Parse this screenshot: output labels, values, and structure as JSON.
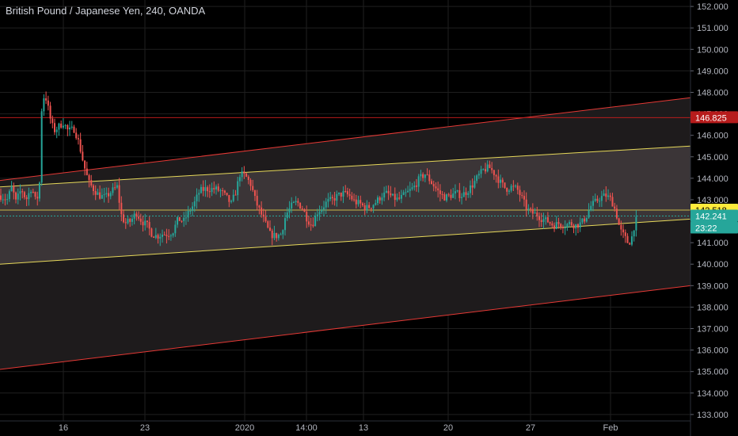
{
  "chart_data": {
    "type": "candlestick",
    "title": "British Pound / Japanese Yen, 240, OANDA",
    "ylim": [
      132.7,
      152.3
    ],
    "y_ticks": [
      133,
      134,
      135,
      136,
      137,
      138,
      139,
      140,
      141,
      142,
      143,
      144,
      145,
      146,
      147,
      148,
      149,
      150,
      151,
      152
    ],
    "y_tick_labels": [
      "133.000",
      "134.000",
      "135.000",
      "136.000",
      "137.000",
      "138.000",
      "139.000",
      "140.000",
      "141.000",
      "142.000",
      "143.000",
      "144.000",
      "145.000",
      "146.000",
      "147.000",
      "148.000",
      "149.000",
      "150.000",
      "151.000",
      "152.000"
    ],
    "x_tick_labels": [
      "16",
      "23",
      "2020",
      "14:00",
      "13",
      "20",
      "27",
      "Feb"
    ],
    "grid": true,
    "colors": {
      "up": "#26a69a",
      "down": "#ef5350",
      "outer_channel": "#e53935",
      "inner_channel": "#e6d85a",
      "channel_fill": "#3b3537",
      "grid": "#1f1f1f",
      "axis_text": "#b2b5be",
      "background": "#000000"
    },
    "price_labels": [
      {
        "value": "146.825",
        "color": "#b71c1c",
        "text_color": "#ffffff"
      },
      {
        "value": "142.518",
        "color": "#ffeb3b",
        "text_color": "#000000"
      },
      {
        "value": "142.241",
        "color": "#26a69a",
        "text_color": "#ffffff"
      },
      {
        "value": "23:22",
        "color": "#26a69a",
        "text_color": "#ffffff"
      }
    ],
    "horizontal_levels": [
      {
        "value": 146.825,
        "color": "#b71c1c"
      },
      {
        "value": 142.518,
        "color": "#c9b94a"
      },
      {
        "value": 142.241,
        "color": "#26a69a"
      }
    ],
    "channels": {
      "outer_upper": {
        "from": 143.9,
        "to": 147.75
      },
      "outer_lower": {
        "from": 135.1,
        "to": 139.0
      },
      "inner_upper": {
        "from": 143.6,
        "to": 145.5
      },
      "inner_lower": {
        "from": 140.0,
        "to": 142.1
      }
    },
    "path": [
      [
        0,
        143.2
      ],
      [
        9,
        143.0
      ],
      [
        15,
        143.6
      ],
      [
        20,
        142.9
      ],
      [
        27,
        143.5
      ],
      [
        33,
        143.0
      ],
      [
        40,
        143.6
      ],
      [
        46,
        142.8
      ],
      [
        50,
        143.8
      ],
      [
        53,
        147.6
      ],
      [
        57,
        147.9
      ],
      [
        60,
        147.4
      ],
      [
        64,
        146.7
      ],
      [
        68,
        146.2
      ],
      [
        74,
        146.4
      ],
      [
        80,
        146.6
      ],
      [
        86,
        146.2
      ],
      [
        94,
        146.3
      ],
      [
        100,
        145.6
      ],
      [
        106,
        144.6
      ],
      [
        112,
        143.8
      ],
      [
        118,
        143.5
      ],
      [
        125,
        143.2
      ],
      [
        133,
        143.1
      ],
      [
        141,
        143.4
      ],
      [
        148,
        143.6
      ],
      [
        153,
        142.3
      ],
      [
        158,
        141.9
      ],
      [
        165,
        142.0
      ],
      [
        172,
        142.4
      ],
      [
        179,
        142.0
      ],
      [
        186,
        141.8
      ],
      [
        192,
        141.4
      ],
      [
        198,
        141.3
      ],
      [
        205,
        141.4
      ],
      [
        212,
        141.4
      ],
      [
        218,
        141.5
      ],
      [
        225,
        142.1
      ],
      [
        232,
        142.0
      ],
      [
        238,
        142.4
      ],
      [
        245,
        142.8
      ],
      [
        252,
        143.4
      ],
      [
        259,
        143.5
      ],
      [
        266,
        143.5
      ],
      [
        272,
        143.5
      ],
      [
        279,
        143.4
      ],
      [
        286,
        143.1
      ],
      [
        292,
        142.8
      ],
      [
        298,
        143.4
      ],
      [
        303,
        144.2
      ],
      [
        310,
        144.1
      ],
      [
        317,
        143.7
      ],
      [
        323,
        142.9
      ],
      [
        329,
        142.4
      ],
      [
        335,
        141.9
      ],
      [
        341,
        141.4
      ],
      [
        348,
        141.3
      ],
      [
        355,
        141.4
      ],
      [
        361,
        142.3
      ],
      [
        368,
        142.7
      ],
      [
        375,
        142.9
      ],
      [
        382,
        142.6
      ],
      [
        388,
        142.1
      ],
      [
        394,
        141.8
      ],
      [
        400,
        142.4
      ],
      [
        406,
        142.6
      ],
      [
        413,
        142.9
      ],
      [
        420,
        143.0
      ],
      [
        427,
        143.2
      ],
      [
        434,
        143.3
      ],
      [
        441,
        143.2
      ],
      [
        448,
        142.9
      ],
      [
        455,
        142.8
      ],
      [
        462,
        142.6
      ],
      [
        468,
        142.7
      ],
      [
        475,
        142.9
      ],
      [
        482,
        143.2
      ],
      [
        489,
        143.3
      ],
      [
        496,
        143.1
      ],
      [
        503,
        143.0
      ],
      [
        510,
        143.2
      ],
      [
        517,
        143.4
      ],
      [
        523,
        143.6
      ],
      [
        530,
        144.0
      ],
      [
        537,
        144.2
      ],
      [
        543,
        143.9
      ],
      [
        549,
        143.6
      ],
      [
        555,
        143.3
      ],
      [
        562,
        143.1
      ],
      [
        569,
        143.2
      ],
      [
        576,
        143.3
      ],
      [
        583,
        143.2
      ],
      [
        590,
        143.4
      ],
      [
        597,
        143.7
      ],
      [
        604,
        144.1
      ],
      [
        611,
        144.4
      ],
      [
        618,
        144.5
      ],
      [
        625,
        144.2
      ],
      [
        632,
        143.8
      ],
      [
        639,
        143.5
      ],
      [
        646,
        143.6
      ],
      [
        653,
        143.5
      ],
      [
        660,
        143.0
      ],
      [
        665,
        142.6
      ],
      [
        671,
        142.4
      ],
      [
        678,
        142.3
      ],
      [
        685,
        142.1
      ],
      [
        692,
        142.0
      ],
      [
        699,
        141.8
      ],
      [
        706,
        141.9
      ],
      [
        713,
        141.8
      ],
      [
        720,
        141.9
      ],
      [
        727,
        141.8
      ],
      [
        734,
        141.9
      ],
      [
        740,
        142.2
      ],
      [
        746,
        142.7
      ],
      [
        752,
        142.9
      ],
      [
        758,
        143.1
      ],
      [
        765,
        143.2
      ],
      [
        772,
        143.0
      ],
      [
        778,
        142.4
      ],
      [
        783,
        141.6
      ],
      [
        788,
        141.3
      ],
      [
        793,
        141.0
      ],
      [
        797,
        141.1
      ],
      [
        801,
        141.8
      ],
      [
        805,
        142.2
      ]
    ]
  }
}
